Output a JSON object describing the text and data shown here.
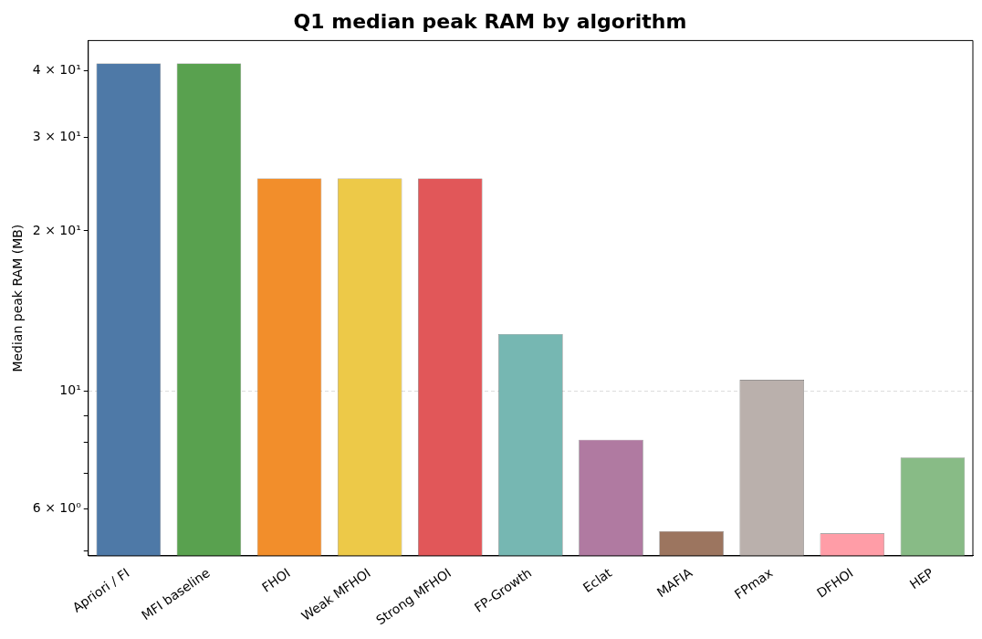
{
  "chart_data": {
    "type": "bar",
    "title": "Q1 median peak RAM by algorithm",
    "ylabel": "Median peak RAM (MB)",
    "categories": [
      "Apriori / FI",
      "MFI baseline",
      "FHOI",
      "Weak MFHOI",
      "Strong MFHOI",
      "FP-Growth",
      "Eclat",
      "MAFIA",
      "FPmax",
      "DFHOI",
      "HEP"
    ],
    "values": [
      41.3,
      41.3,
      25.1,
      25.1,
      25.1,
      12.8,
      8.1,
      5.45,
      10.5,
      5.4,
      7.5
    ],
    "colors": [
      "#4e79a7",
      "#59a14f",
      "#f28e2b",
      "#edc948",
      "#e15759",
      "#76b7b2",
      "#b07aa1",
      "#9c755f",
      "#bab0ac",
      "#ff9da7",
      "#88bb86"
    ],
    "log": "y",
    "ylim": [
      4.9,
      45.6
    ],
    "yticks": [
      {
        "value": 5,
        "label": null
      },
      {
        "value": 6,
        "label": "6 × 10⁰"
      },
      {
        "value": 7,
        "label": null
      },
      {
        "value": 8,
        "label": null
      },
      {
        "value": 9,
        "label": null
      },
      {
        "value": 10,
        "label": "10¹"
      },
      {
        "value": 20,
        "label": "2 × 10¹"
      },
      {
        "value": 30,
        "label": "3 × 10¹"
      },
      {
        "value": 40,
        "label": "4 × 10¹"
      }
    ],
    "grid": "y",
    "legend": false
  }
}
